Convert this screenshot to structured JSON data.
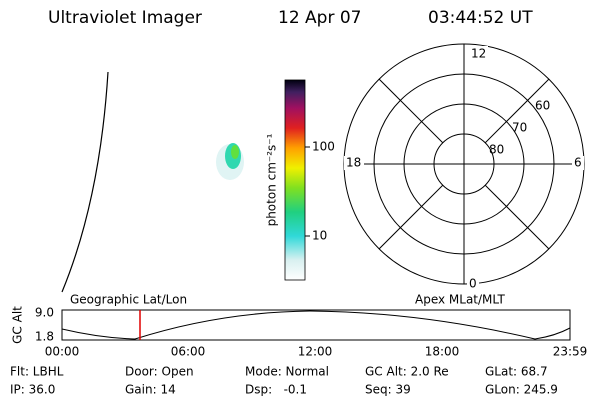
{
  "header": {
    "title": "Ultraviolet Imager",
    "date": "12 Apr 07",
    "time": "03:44:52 UT"
  },
  "colorbar": {
    "label": "photon cm⁻²s⁻¹",
    "ticks": [
      "100",
      "10"
    ]
  },
  "polar": {
    "mlt_labels": [
      "12",
      "6",
      "0",
      "18"
    ],
    "lat_labels": [
      "60",
      "70",
      "80"
    ]
  },
  "timeline": {
    "left_title": "Geographic Lat/Lon",
    "right_title": "Apex MLat/MLT",
    "axis_label": "GC Alt",
    "alt_ticks": [
      "9.0",
      "1.8"
    ],
    "time_ticks": [
      "00:00",
      "06:00",
      "12:00",
      "18:00",
      "23:59"
    ]
  },
  "footer": {
    "rows": [
      [
        "Flt: LBHL",
        "Door: Open",
        "Mode: Normal",
        "GC Alt: 2.0 Re",
        "GLat: 68.7"
      ],
      [
        "IP: 36.0",
        "Gain: 14",
        "Dsp:   -0.1",
        "Seq: 39",
        "GLon: 245.9"
      ]
    ]
  }
}
